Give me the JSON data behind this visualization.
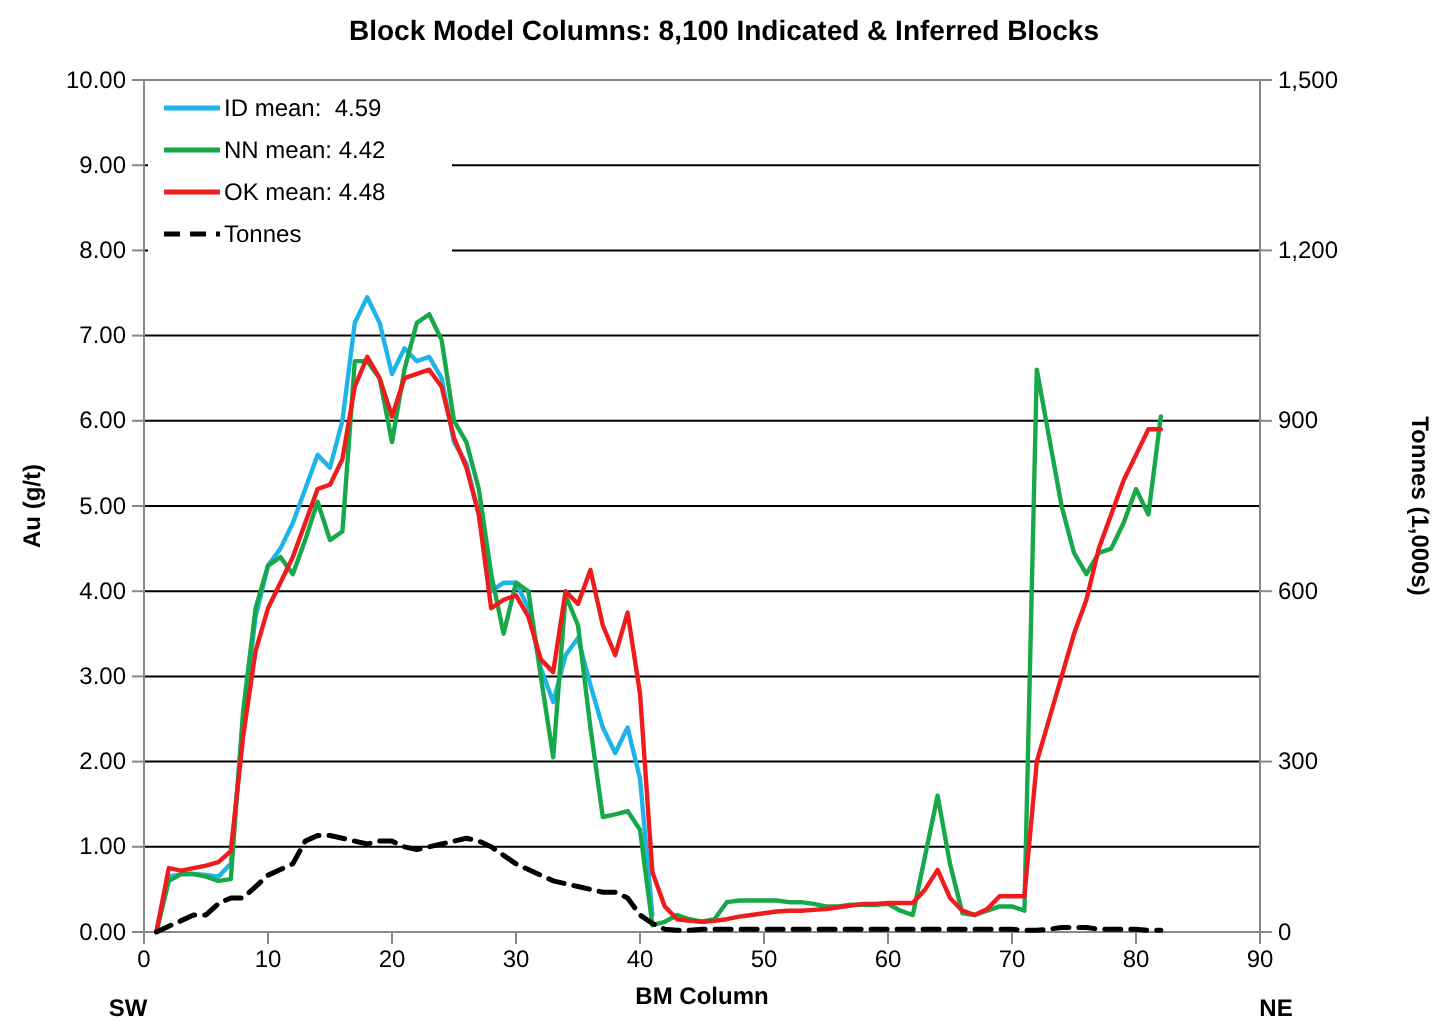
{
  "chart_data": {
    "type": "line",
    "title": "Block Model Columns: 8,100 Indicated & Inferred Blocks",
    "xlabel": "BM Column",
    "ylabel": "Au (g/t)",
    "y2label": "Tonnes (1,000s)",
    "x": [
      1,
      2,
      3,
      4,
      5,
      6,
      7,
      8,
      9,
      10,
      11,
      12,
      13,
      14,
      15,
      16,
      17,
      18,
      19,
      20,
      21,
      22,
      23,
      24,
      25,
      26,
      27,
      28,
      29,
      30,
      31,
      32,
      33,
      34,
      35,
      36,
      37,
      38,
      39,
      40,
      41,
      42,
      43,
      44,
      45,
      46,
      47,
      48,
      49,
      50,
      51,
      52,
      53,
      54,
      55,
      56,
      57,
      58,
      59,
      60,
      61,
      62,
      63,
      64,
      65,
      66,
      67,
      68,
      69,
      70,
      71,
      72,
      73,
      74,
      75,
      76,
      77,
      78,
      79,
      80,
      81,
      82
    ],
    "series": [
      {
        "name": "ID mean:  4.59",
        "color": "#1fb4e8",
        "values": [
          0,
          0.65,
          0.68,
          0.68,
          0.67,
          0.65,
          0.8,
          2.5,
          3.7,
          4.3,
          4.5,
          4.8,
          5.2,
          5.6,
          5.45,
          6.0,
          7.15,
          7.45,
          7.15,
          6.55,
          6.85,
          6.7,
          6.75,
          6.5,
          5.75,
          5.5,
          4.9,
          4.0,
          4.1,
          4.1,
          3.8,
          3.1,
          2.7,
          3.25,
          3.45,
          2.9,
          2.4,
          2.1,
          2.4,
          1.8,
          0.2,
          null,
          null,
          null,
          null,
          null,
          null,
          null,
          null,
          null,
          null,
          null,
          null,
          null,
          null,
          null,
          null,
          null,
          null,
          null,
          null,
          null,
          null,
          null,
          null,
          null,
          null,
          null,
          null,
          null,
          null,
          null,
          null,
          null,
          null,
          null,
          null,
          null,
          null,
          null,
          null,
          null
        ]
      },
      {
        "name": "NN mean: 4.42",
        "color": "#17a84a",
        "values": [
          0,
          0.6,
          0.68,
          0.68,
          0.65,
          0.6,
          0.62,
          2.6,
          3.8,
          4.3,
          4.4,
          4.2,
          4.6,
          5.05,
          4.6,
          4.7,
          6.7,
          6.7,
          6.5,
          5.75,
          6.6,
          7.15,
          7.25,
          6.95,
          6.0,
          5.75,
          5.2,
          4.2,
          3.5,
          4.1,
          4.0,
          3.0,
          2.05,
          3.95,
          3.6,
          2.4,
          1.35,
          1.38,
          1.42,
          1.2,
          0.08,
          0.12,
          0.2,
          0.15,
          0.12,
          0.15,
          0.35,
          0.37,
          0.37,
          0.37,
          0.37,
          0.35,
          0.35,
          0.33,
          0.3,
          0.3,
          0.32,
          0.32,
          0.32,
          0.33,
          0.25,
          0.2,
          0.9,
          1.6,
          0.8,
          0.22,
          0.2,
          0.25,
          0.3,
          0.3,
          0.25,
          6.6,
          5.8,
          5.0,
          4.45,
          4.2,
          4.45,
          4.5,
          4.8,
          5.2,
          4.9,
          6.05
        ]
      },
      {
        "name": "OK mean: 4.48",
        "color": "#ee1c1c",
        "values": [
          0,
          0.75,
          0.72,
          0.75,
          0.78,
          0.82,
          0.95,
          2.3,
          3.3,
          3.8,
          4.1,
          4.4,
          4.8,
          5.2,
          5.25,
          5.55,
          6.4,
          6.75,
          6.5,
          6.05,
          6.5,
          6.55,
          6.6,
          6.4,
          5.8,
          5.45,
          4.9,
          3.8,
          3.9,
          3.95,
          3.7,
          3.2,
          3.05,
          4.0,
          3.85,
          4.25,
          3.6,
          3.25,
          3.75,
          2.8,
          0.7,
          0.3,
          0.15,
          0.13,
          0.12,
          0.13,
          0.15,
          0.18,
          0.2,
          0.22,
          0.24,
          0.25,
          0.25,
          0.26,
          0.27,
          0.29,
          0.31,
          0.33,
          0.33,
          0.34,
          0.34,
          0.34,
          0.5,
          0.73,
          0.4,
          0.25,
          0.2,
          0.27,
          0.42,
          0.42,
          0.42,
          2.0,
          2.5,
          3.0,
          3.5,
          3.9,
          4.5,
          4.9,
          5.3,
          5.6,
          5.9,
          5.9
        ]
      },
      {
        "name": "Tonnes",
        "color": "#000000",
        "axis": "y2",
        "line_style": "dashed",
        "values": [
          0,
          10,
          20,
          30,
          30,
          50,
          60,
          60,
          80,
          100,
          110,
          120,
          160,
          170,
          170,
          165,
          160,
          155,
          160,
          160,
          150,
          145,
          150,
          155,
          160,
          165,
          160,
          150,
          135,
          120,
          110,
          100,
          90,
          85,
          80,
          75,
          70,
          70,
          60,
          30,
          15,
          5,
          3,
          3,
          5,
          5,
          5,
          5,
          5,
          5,
          5,
          5,
          5,
          5,
          5,
          5,
          5,
          5,
          5,
          5,
          5,
          5,
          5,
          5,
          5,
          5,
          5,
          5,
          5,
          5,
          3,
          3,
          5,
          8,
          8,
          8,
          5,
          5,
          5,
          5,
          3,
          3
        ]
      }
    ],
    "xlim": [
      0,
      90
    ],
    "xticks": [
      0,
      10,
      20,
      30,
      40,
      50,
      60,
      70,
      80,
      90
    ],
    "ylim": [
      0,
      10
    ],
    "yticks": [
      {
        "value": 0,
        "label": "0.00"
      },
      {
        "value": 1,
        "label": "1.00"
      },
      {
        "value": 2,
        "label": "2.00"
      },
      {
        "value": 3,
        "label": "3.00"
      },
      {
        "value": 4,
        "label": "4.00"
      },
      {
        "value": 5,
        "label": "5.00"
      },
      {
        "value": 6,
        "label": "6.00"
      },
      {
        "value": 7,
        "label": "7.00"
      },
      {
        "value": 8,
        "label": "8.00"
      },
      {
        "value": 9,
        "label": "9.00"
      },
      {
        "value": 10,
        "label": "10.00"
      }
    ],
    "y2lim": [
      0,
      1500
    ],
    "y2ticks": [
      0,
      {
        "value": 300,
        "label": "300"
      },
      {
        "value": 600,
        "label": "600"
      },
      {
        "value": 900,
        "label": "900"
      },
      {
        "value": 1200,
        "label": "1,200"
      },
      {
        "value": 1500,
        "label": "1,500"
      }
    ],
    "grid": "y",
    "legend": "top left",
    "marker": "none",
    "line_style": "solid",
    "annotations": [
      "SW",
      "NE"
    ]
  }
}
